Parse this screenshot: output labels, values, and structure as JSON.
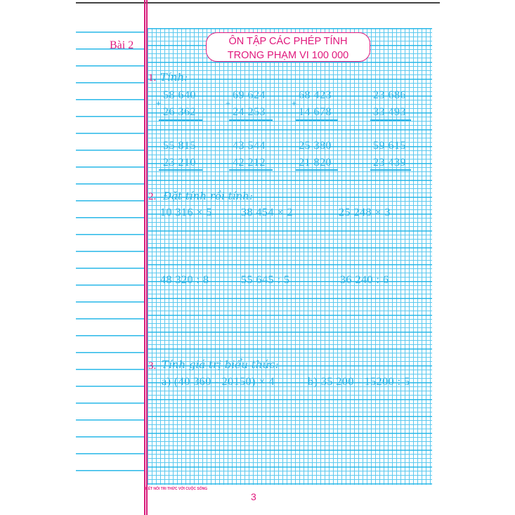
{
  "lesson_label": "Bài 2",
  "title": {
    "line1": "ÔN TẬP CÁC PHÉP TÍNH",
    "line2": "TRONG PHẠM VI 100 000"
  },
  "exercise1": {
    "number": "1.",
    "heading": "Tính:",
    "row1": [
      {
        "op": "+",
        "a": "58 640",
        "b": "26 362"
      },
      {
        "op": "+",
        "a": "69 624",
        "b": "24 253"
      },
      {
        "op": "+",
        "a": "68 423",
        "b": "14 678"
      },
      {
        "op": "",
        "a": "23 686",
        "b": "33 493"
      }
    ],
    "row2": [
      {
        "a": "55 815",
        "b": "23 210"
      },
      {
        "a": "43 544",
        "b": "42 212"
      },
      {
        "a": "25 380",
        "b": "21 820"
      },
      {
        "a": "59 615",
        "b": "23 439"
      }
    ]
  },
  "exercise2": {
    "number": "2.",
    "heading": "Đặt tính rồi tính:",
    "items": [
      "10 316 × 5",
      "38 454 × 2",
      "25 248 × 3",
      "48 320 : 8",
      "55 645 : 5",
      "36 240 : 6"
    ]
  },
  "exercise3": {
    "number": "3.",
    "heading": "Tính giá trị biểu thức:",
    "a": "a) (40 360 - 20150) × 4",
    "b": "b) 35 200 - 15200 : 5"
  },
  "footer": {
    "publisher": "KẾT NỐI TRI THỨC VỚI CUỘC SỐNG",
    "page": "3"
  },
  "colors": {
    "grid": "#29b8e8",
    "accent": "#e0197d"
  }
}
